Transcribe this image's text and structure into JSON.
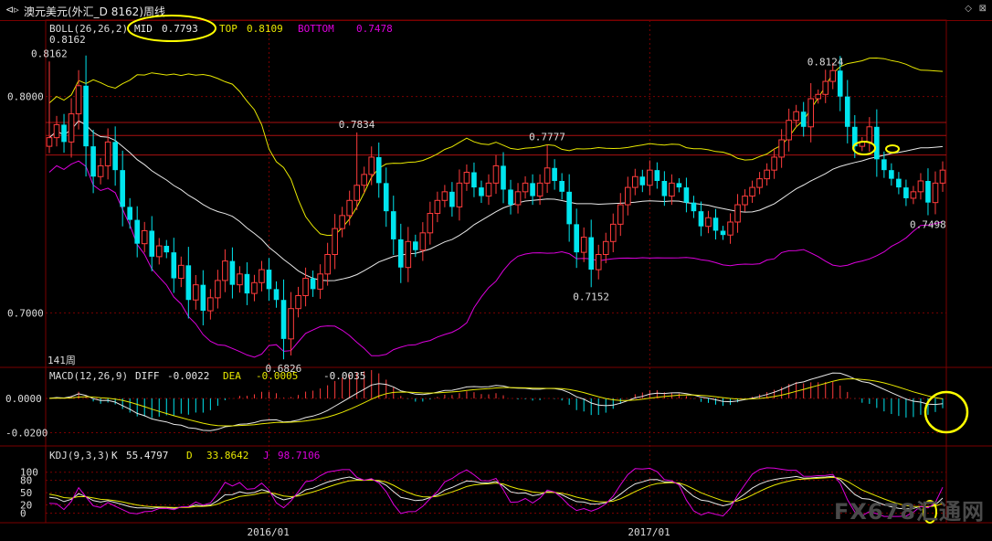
{
  "window": {
    "title": "澳元美元(外汇_D 8162)周线",
    "arrow_glyph": "⊲▹",
    "controls_glyph": "◇",
    "close_glyph": "⊠"
  },
  "watermark": "FX678汇通网",
  "chart_data": {
    "type": "candlestick",
    "period_label": "141周",
    "colors": {
      "up": "#ff3c3c",
      "down": "#00e5ee",
      "mid": "#e8e8e8",
      "top": "#e8e800",
      "bottom": "#dd00dd",
      "annotation": "#ffff00"
    },
    "main": {
      "ylim": [
        0.674,
        0.8235
      ],
      "yticks": [
        {
          "value": 0.8,
          "label": "0.8000"
        },
        {
          "value": 0.7,
          "label": "0.7000"
        }
      ],
      "ref_lines": [
        0.788,
        0.782,
        0.773
      ],
      "legend": {
        "boll_label": "BOLL(26,26,2)",
        "mid_label": "MID",
        "mid_value": "0.7793",
        "top_label": "TOP",
        "top_value": "0.8109",
        "bottom_label": "BOTTOM",
        "bottom_value": "0.7478"
      },
      "price_labels": [
        {
          "text": "0.8162",
          "kind": "high",
          "bar": 0
        },
        {
          "text": "0.7834",
          "kind": "high",
          "bar": 42
        },
        {
          "text": "0.7777",
          "kind": "high",
          "bar": 68
        },
        {
          "text": "0.8124",
          "kind": "high",
          "bar": 106
        },
        {
          "text": "0.6826",
          "kind": "low",
          "bar": 32
        },
        {
          "text": "0.7152",
          "kind": "low",
          "bar": 74
        },
        {
          "text": "0.7498",
          "kind": "low",
          "bar": 120
        }
      ],
      "closes": [
        0.781,
        0.787,
        0.779,
        0.792,
        0.805,
        0.777,
        0.763,
        0.768,
        0.779,
        0.766,
        0.749,
        0.743,
        0.732,
        0.738,
        0.726,
        0.731,
        0.728,
        0.716,
        0.722,
        0.706,
        0.713,
        0.701,
        0.707,
        0.715,
        0.724,
        0.713,
        0.718,
        0.709,
        0.714,
        0.72,
        0.711,
        0.706,
        0.688,
        0.702,
        0.708,
        0.716,
        0.711,
        0.718,
        0.727,
        0.739,
        0.745,
        0.752,
        0.759,
        0.764,
        0.772,
        0.76,
        0.747,
        0.734,
        0.721,
        0.733,
        0.729,
        0.737,
        0.746,
        0.752,
        0.756,
        0.749,
        0.76,
        0.765,
        0.758,
        0.754,
        0.76,
        0.768,
        0.757,
        0.75,
        0.756,
        0.76,
        0.754,
        0.76,
        0.767,
        0.761,
        0.756,
        0.741,
        0.728,
        0.735,
        0.72,
        0.727,
        0.733,
        0.741,
        0.75,
        0.758,
        0.763,
        0.759,
        0.766,
        0.761,
        0.754,
        0.76,
        0.758,
        0.751,
        0.747,
        0.74,
        0.744,
        0.738,
        0.736,
        0.742,
        0.75,
        0.754,
        0.758,
        0.762,
        0.766,
        0.772,
        0.78,
        0.789,
        0.793,
        0.786,
        0.799,
        0.801,
        0.807,
        0.812,
        0.8,
        0.786,
        0.777,
        0.779,
        0.786,
        0.771,
        0.766,
        0.762,
        0.758,
        0.753,
        0.756,
        0.761,
        0.751,
        0.76,
        0.766
      ]
    },
    "macd": {
      "legend": {
        "label": "MACD(12,26,9)",
        "diff_label": "DIFF",
        "diff_value": "-0.0022",
        "dea_label": "DEA",
        "dea_value": "-0.0005",
        "macd_value": "-0.0035"
      },
      "ylim": [
        -0.0235,
        0.0085
      ],
      "yticks": [
        {
          "value": 0.0,
          "label": "0.0000"
        },
        {
          "value": -0.02,
          "label": "-0.0200"
        }
      ]
    },
    "kdj": {
      "legend": {
        "label": "KDJ(9,3,3)",
        "k_label": "K",
        "k_value": "55.4797",
        "d_label": "D",
        "d_value": "33.8642",
        "j_label": "J",
        "j_value": "98.7106"
      },
      "ylim": [
        -10,
        115
      ],
      "yticks": [
        {
          "value": 100,
          "label": "100"
        },
        {
          "value": 80,
          "label": "80"
        },
        {
          "value": 50,
          "label": "50"
        },
        {
          "value": 20,
          "label": "20"
        },
        {
          "value": 0,
          "label": "0"
        }
      ]
    },
    "x_ticks": [
      {
        "label": "2016/01",
        "bar": 30
      },
      {
        "label": "2017/01",
        "bar": 82
      }
    ]
  }
}
